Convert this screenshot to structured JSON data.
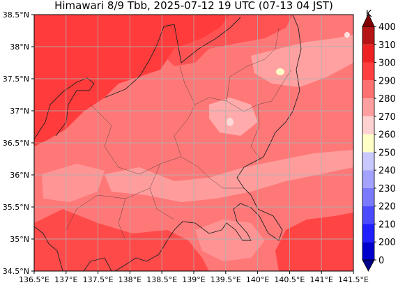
{
  "title": "Himawari 8/9 Tbb, 2025-07-12 19 UTC (07-13 04 JST)",
  "map": {
    "lon_range": [
      136.5,
      141.5
    ],
    "lat_range": [
      34.5,
      38.5
    ],
    "lon_ticks": [
      "136.5°E",
      "137°E",
      "137.5°E",
      "138°E",
      "138.5°E",
      "139°E",
      "139.5°E",
      "140°E",
      "140.5°E",
      "141°E",
      "141.5°E"
    ],
    "lat_ticks": [
      "38.5°N",
      "38°N",
      "37.5°N",
      "37°N",
      "36.5°N",
      "36°N",
      "35.5°N",
      "35°N",
      "34.5°N"
    ],
    "grid": true
  },
  "colorbar": {
    "unit": "K",
    "levels": [
      "0",
      "200",
      "210",
      "220",
      "230",
      "240",
      "250",
      "260",
      "270",
      "280",
      "290",
      "300",
      "310",
      "400"
    ],
    "colors": [
      "#00008b",
      "#0000cd",
      "#1f1fff",
      "#4a4aff",
      "#7a7aff",
      "#a3a3ff",
      "#c8c8ff",
      "#ffffc8",
      "#ffd2d2",
      "#ff9f9f",
      "#ff7070",
      "#ff3f3f",
      "#ee2222",
      "#b51515",
      "#800000"
    ]
  }
}
